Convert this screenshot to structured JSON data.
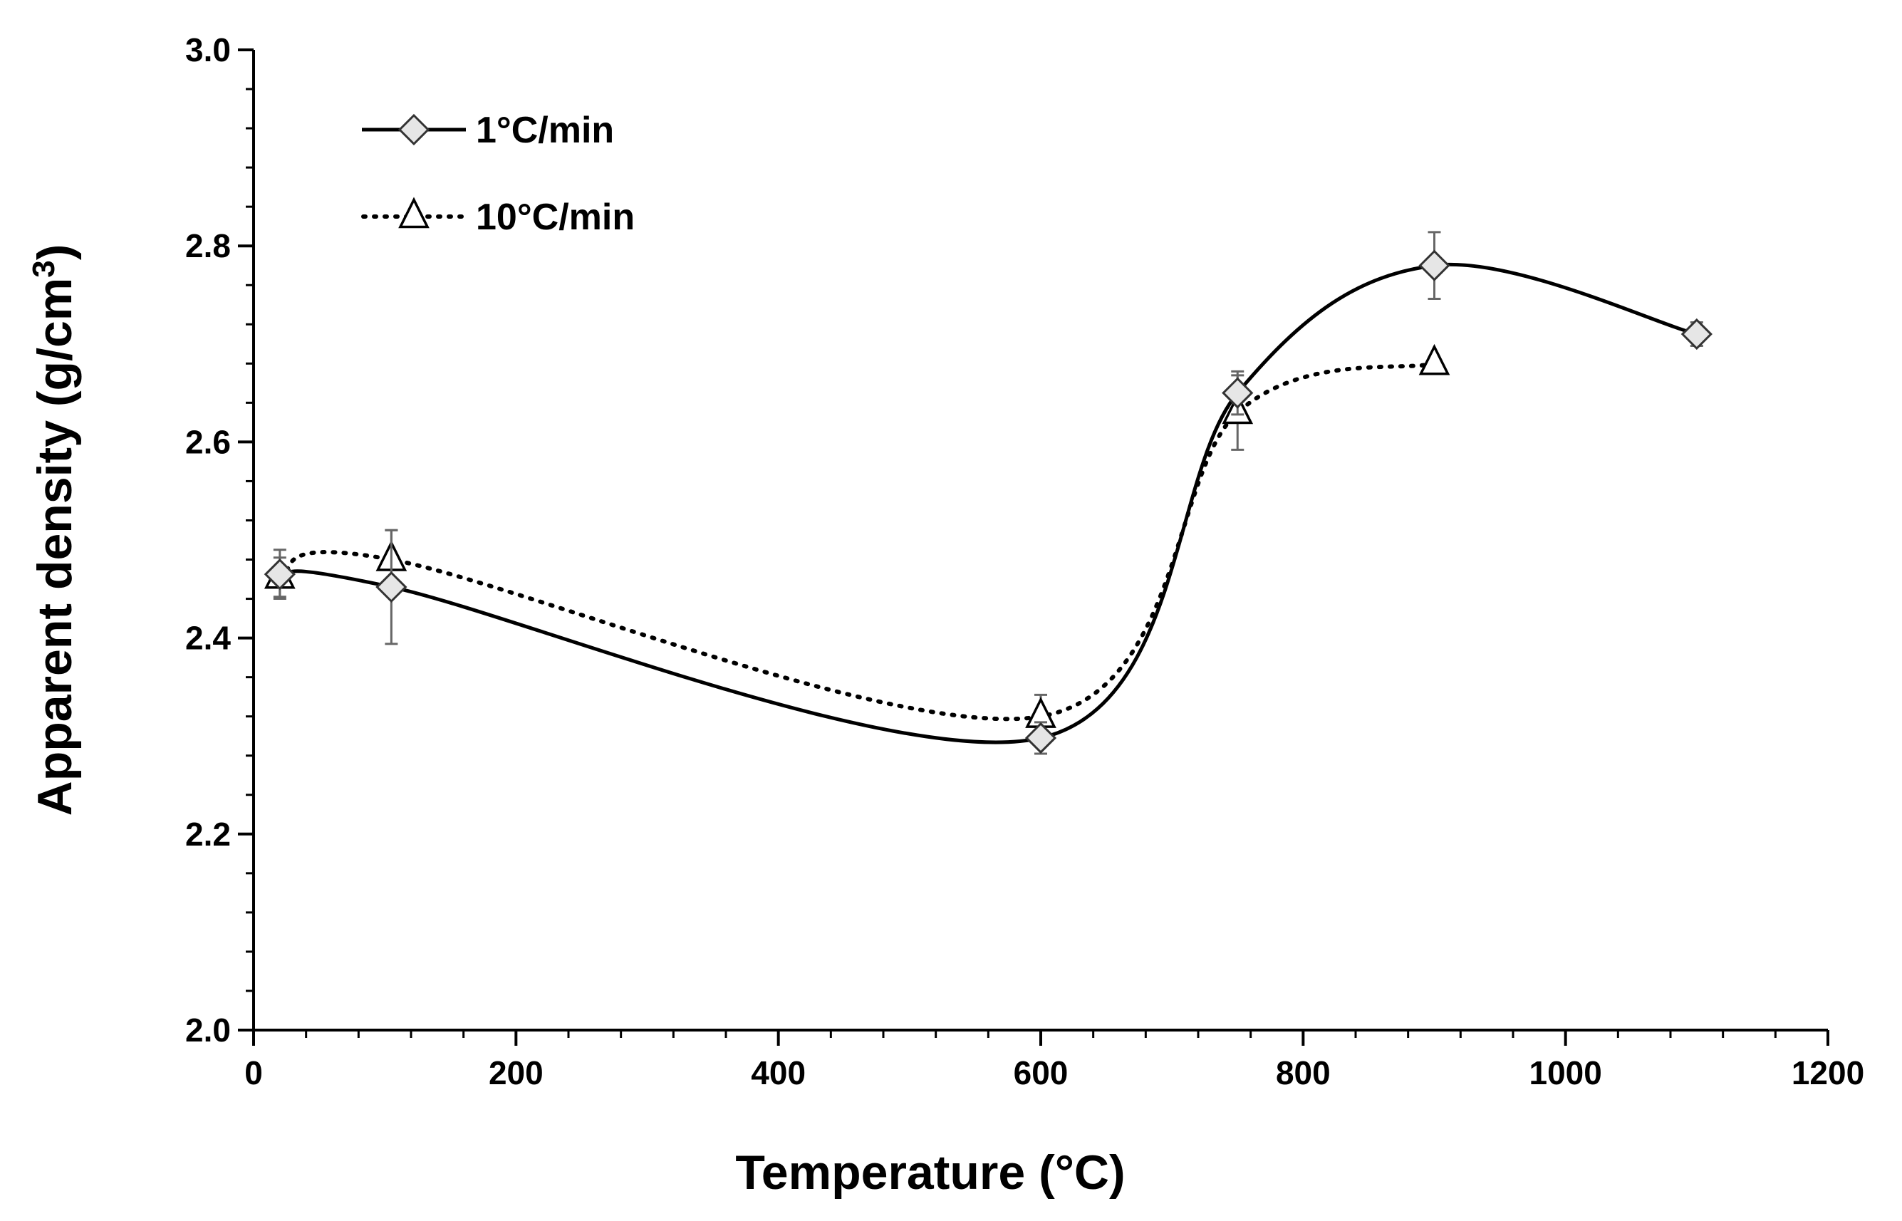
{
  "chart_data": {
    "type": "line",
    "title": "",
    "xlabel": "Temperature (°C)",
    "ylabel_main": "Apparent density (g/cm",
    "ylabel_sup": "3",
    "ylabel_close": ")",
    "xlim": [
      0,
      1200
    ],
    "ylim": [
      2.0,
      3.0
    ],
    "x_ticks": [
      0,
      200,
      400,
      600,
      800,
      1000,
      1200
    ],
    "x_tick_labels": [
      "0",
      "200",
      "400",
      "600",
      "800",
      "1000",
      "1200"
    ],
    "y_ticks": [
      2.0,
      2.2,
      2.4,
      2.6,
      2.8,
      3.0
    ],
    "y_tick_labels": [
      "2.0",
      "2.2",
      "2.4",
      "2.6",
      "2.8",
      "3.0"
    ],
    "grid": false,
    "legend_position": "top-left",
    "series": [
      {
        "name": "1°C/min",
        "marker": "diamond",
        "line": "solid",
        "x": [
          20,
          105,
          600,
          750,
          900,
          1100
        ],
        "values": [
          2.465,
          2.452,
          2.298,
          2.65,
          2.78,
          2.71
        ],
        "errors": [
          0.025,
          0.058,
          0.016,
          0.022,
          0.034,
          0.012
        ],
        "color": "#000000",
        "marker_fill": "#e6e6e6"
      },
      {
        "name": "10°C/min",
        "marker": "triangle",
        "line": "dotted",
        "x": [
          20,
          105,
          600,
          750,
          900
        ],
        "values": [
          2.462,
          2.48,
          2.32,
          2.63,
          2.68
        ],
        "errors": [
          0.02,
          0.03,
          0.022,
          0.038,
          0.0
        ],
        "color": "#000000",
        "marker_fill": "#ffffff"
      }
    ]
  }
}
